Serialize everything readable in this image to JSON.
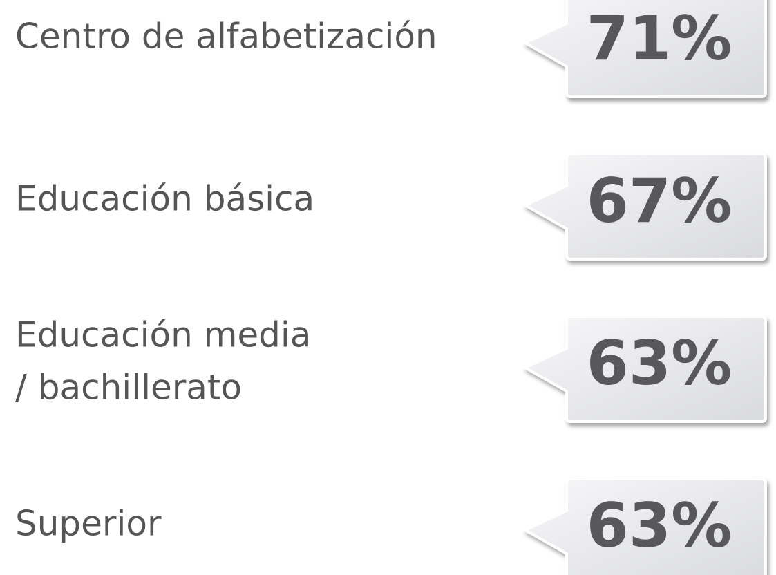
{
  "items": [
    {
      "label": [
        "Centro de alfabetización"
      ],
      "value": "71%"
    },
    {
      "label": [
        "Educación básica"
      ],
      "value": "67%"
    },
    {
      "label": [
        "Educación media",
        "/ bachillerato"
      ],
      "value": "63%"
    },
    {
      "label": [
        "Superior"
      ],
      "value": "63%"
    }
  ]
}
